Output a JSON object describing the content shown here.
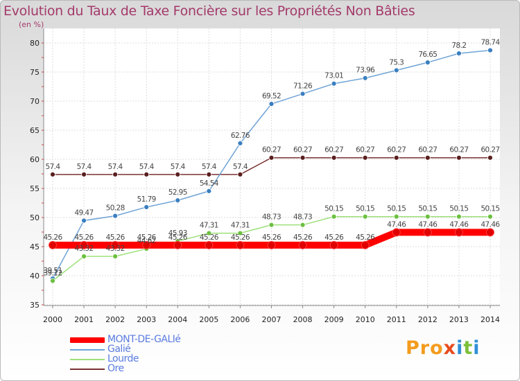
{
  "title": "Evolution du Taux de Taxe Foncière sur les Propriétés Non Bâties",
  "unit_label": "(en %)",
  "brand": {
    "p1": "Pro",
    "x": "x",
    "i": "i",
    "t": "t",
    "i2": "i"
  },
  "chart_data": {
    "type": "line",
    "title": "Evolution du Taux de Taxe Foncière sur les Propriétés Non Bâties",
    "ylabel": "(en %)",
    "ylim": [
      35,
      80
    ],
    "yticks": [
      35,
      40,
      45,
      50,
      55,
      60,
      65,
      70,
      75,
      80
    ],
    "categories": [
      "2000",
      "2001",
      "2002",
      "2003",
      "2004",
      "2005",
      "2006",
      "2007",
      "2008",
      "2009",
      "2010",
      "2011",
      "2012",
      "2013",
      "2014"
    ],
    "series": [
      {
        "name": "MONT-DE-GALIé",
        "color": "#ff0000",
        "marker": "#e00000",
        "values": [
          45.26,
          45.26,
          45.26,
          45.26,
          45.26,
          45.26,
          45.26,
          45.26,
          45.26,
          45.26,
          45.26,
          47.46,
          47.46,
          47.46,
          47.46
        ],
        "labels": [
          "45.26",
          "45.26",
          "45.26",
          "45.26",
          "45.26",
          "45.26",
          "45.26",
          "45.26",
          "45.26",
          "45.26",
          "45.26",
          "47.46",
          "47.46",
          "47.46",
          "47.46"
        ]
      },
      {
        "name": "Galié",
        "color": "#6fa3d6",
        "marker": "#3a7fc0",
        "values": [
          39.51,
          49.47,
          50.28,
          51.79,
          52.95,
          54.54,
          62.76,
          69.52,
          71.26,
          73.01,
          73.96,
          75.3,
          76.65,
          78.2,
          78.74
        ],
        "labels": [
          "39.51",
          "49.47",
          "50.28",
          "51.79",
          "52.95",
          "54.54",
          "62.76",
          "69.52",
          "71.26",
          "73.01",
          "73.96",
          "75.3",
          "76.65",
          "78.2",
          "78.74"
        ]
      },
      {
        "name": "Lourde",
        "color": "#9ee07a",
        "marker": "#6cc040",
        "values": [
          39.12,
          43.32,
          43.32,
          44.62,
          45.93,
          47.31,
          47.31,
          48.73,
          48.73,
          50.15,
          50.15,
          50.15,
          50.15,
          50.15,
          50.15
        ],
        "labels": [
          "39.12",
          "43.32",
          "43.32",
          "44.62",
          "45.93",
          "47.31",
          "47.31",
          "48.73",
          "48.73",
          "50.15",
          "50.15",
          "50.15",
          "50.15",
          "50.15",
          "50.15"
        ]
      },
      {
        "name": "Ore",
        "color": "#7a3030",
        "marker": "#5a1e1e",
        "values": [
          57.4,
          57.4,
          57.4,
          57.4,
          57.4,
          57.4,
          57.4,
          60.27,
          60.27,
          60.27,
          60.27,
          60.27,
          60.27,
          60.27,
          60.27
        ],
        "labels": [
          "57.4",
          "57.4",
          "57.4",
          "57.4",
          "57.4",
          "57.4",
          "57.4",
          "60.27",
          "60.27",
          "60.27",
          "60.27",
          "60.27",
          "60.27",
          "60.27",
          "60.27"
        ]
      }
    ],
    "legend": [
      "MONT-DE-GALIé",
      "Galié",
      "Lourde",
      "Ore"
    ]
  }
}
